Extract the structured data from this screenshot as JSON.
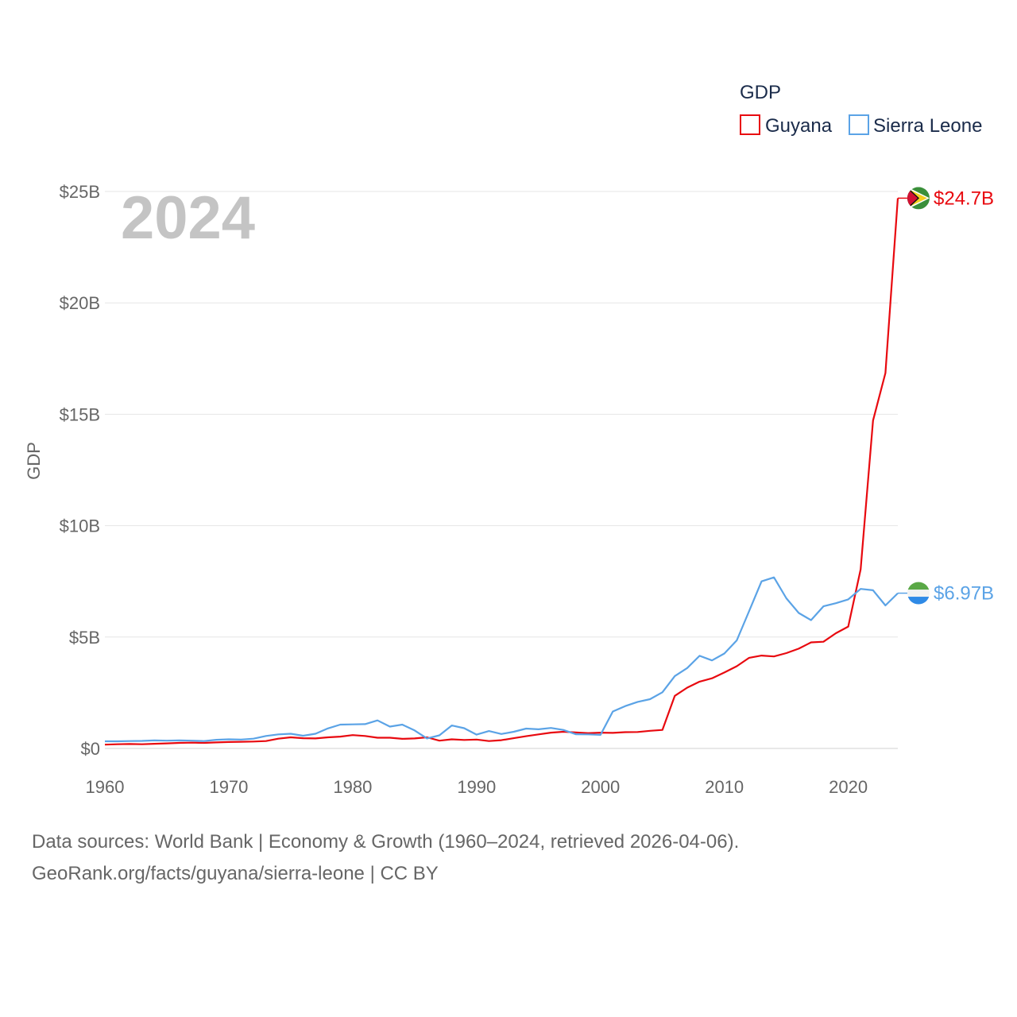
{
  "chart_data": {
    "type": "line",
    "title": "",
    "xlabel": "",
    "ylabel": "GDP",
    "year_label": "2024",
    "legend_title": "GDP",
    "legend_position": "top-right",
    "xlim": [
      1960,
      2024
    ],
    "ylim": [
      0,
      25
    ],
    "x_ticks": [
      1960,
      1970,
      1980,
      1990,
      2000,
      2010,
      2020
    ],
    "y_ticks": [
      0,
      5,
      10,
      15,
      20,
      25
    ],
    "y_tick_labels": [
      "$0",
      "$5B",
      "$10B",
      "$15B",
      "$20B",
      "$25B"
    ],
    "grid": true,
    "x": [
      1960,
      1961,
      1962,
      1963,
      1964,
      1965,
      1966,
      1967,
      1968,
      1969,
      1970,
      1971,
      1972,
      1973,
      1974,
      1975,
      1976,
      1977,
      1978,
      1979,
      1980,
      1981,
      1982,
      1983,
      1984,
      1985,
      1986,
      1987,
      1988,
      1989,
      1990,
      1991,
      1992,
      1993,
      1994,
      1995,
      1996,
      1997,
      1998,
      1999,
      2000,
      2001,
      2002,
      2003,
      2004,
      2005,
      2006,
      2007,
      2008,
      2009,
      2010,
      2011,
      2012,
      2013,
      2014,
      2015,
      2016,
      2017,
      2018,
      2019,
      2020,
      2021,
      2022,
      2023,
      2024
    ],
    "series": [
      {
        "name": "Guyana",
        "color": "#e8090f",
        "end_label": "$24.7B",
        "values": [
          0.17,
          0.19,
          0.2,
          0.19,
          0.21,
          0.23,
          0.25,
          0.26,
          0.25,
          0.27,
          0.29,
          0.3,
          0.31,
          0.33,
          0.44,
          0.5,
          0.46,
          0.45,
          0.5,
          0.53,
          0.6,
          0.56,
          0.48,
          0.48,
          0.43,
          0.45,
          0.5,
          0.35,
          0.41,
          0.38,
          0.4,
          0.33,
          0.37,
          0.46,
          0.55,
          0.63,
          0.71,
          0.75,
          0.72,
          0.69,
          0.71,
          0.7,
          0.73,
          0.74,
          0.79,
          0.83,
          2.36,
          2.73,
          3.0,
          3.15,
          3.41,
          3.69,
          4.07,
          4.17,
          4.13,
          4.28,
          4.48,
          4.76,
          4.79,
          5.17,
          5.47,
          8.04,
          14.72,
          16.85,
          24.7
        ]
      },
      {
        "name": "Sierra Leone",
        "color": "#5ba3e6",
        "end_label": "$6.97B",
        "values": [
          0.32,
          0.32,
          0.33,
          0.34,
          0.36,
          0.35,
          0.36,
          0.35,
          0.33,
          0.39,
          0.41,
          0.4,
          0.44,
          0.56,
          0.63,
          0.66,
          0.57,
          0.66,
          0.9,
          1.07,
          1.08,
          1.09,
          1.26,
          0.98,
          1.07,
          0.81,
          0.45,
          0.59,
          1.03,
          0.91,
          0.62,
          0.78,
          0.65,
          0.75,
          0.89,
          0.86,
          0.92,
          0.83,
          0.64,
          0.63,
          0.61,
          1.66,
          1.9,
          2.09,
          2.21,
          2.52,
          3.25,
          3.61,
          4.16,
          3.95,
          4.26,
          4.85,
          6.17,
          7.5,
          7.68,
          6.74,
          6.08,
          5.76,
          6.38,
          6.52,
          6.69,
          7.16,
          7.1,
          6.42,
          6.97
        ]
      }
    ]
  },
  "source": {
    "line1": "Data sources: World Bank | Economy & Growth (1960–2024, retrieved 2026-04-06).",
    "line2": "GeoRank.org/facts/guyana/sierra-leone | CC BY"
  }
}
